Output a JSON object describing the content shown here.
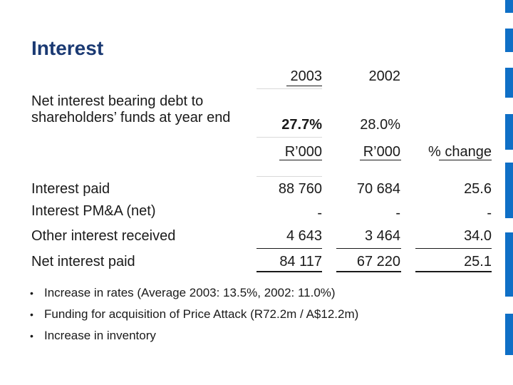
{
  "slide": {
    "title": "Interest",
    "accent_color": "#0f6fc6",
    "title_color": "#1b3a73"
  },
  "years": {
    "y2003": "2003",
    "y2002": "2002"
  },
  "debt_ratio": {
    "label_line1": "Net interest bearing debt to",
    "label_line2": "shareholders’ funds at year end",
    "v2003": "27.7%",
    "v2002": "28.0%"
  },
  "units": {
    "u2003": "R’000",
    "u2002": "R’000",
    "change": "% change"
  },
  "rows": [
    {
      "label": "Interest paid",
      "v2003": "88 760",
      "v2002": "70 684",
      "change": "25.6"
    },
    {
      "label": "Interest PM&A (net)",
      "v2003": "-",
      "v2002": "-",
      "change": "-"
    },
    {
      "label": "Other interest received",
      "v2003": "4 643",
      "v2002": "3 464",
      "change": "34.0"
    },
    {
      "label": "Net interest paid",
      "v2003": "84 117",
      "v2002": "67 220",
      "change": "25.1"
    }
  ],
  "bullets": [
    "Increase in rates (Average 2003: 13.5%, 2002: 11.0%)",
    "Funding for acquisition of Price Attack (R72.2m / A$12.2m)",
    "Increase in inventory"
  ],
  "bullet_glyph": "•"
}
